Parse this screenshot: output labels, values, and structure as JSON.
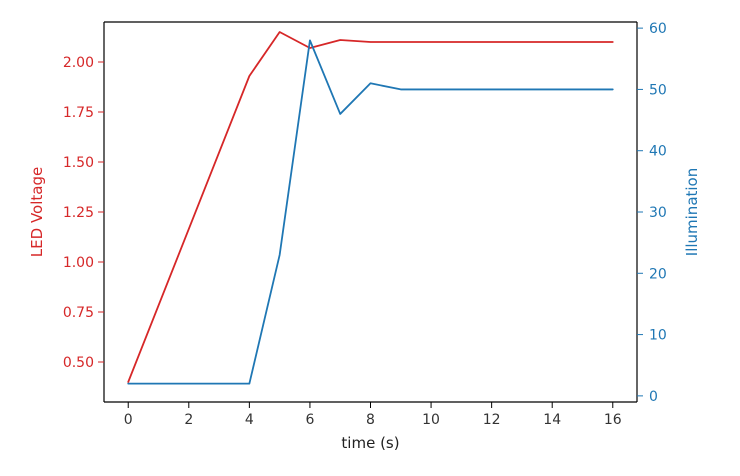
{
  "chart_data": {
    "type": "line",
    "xlabel": "time (s)",
    "ylabel_left": "LED Voltage",
    "ylabel_right": "Illumination",
    "x_ticks": [
      0,
      2,
      4,
      6,
      8,
      10,
      12,
      14,
      16
    ],
    "y_left_ticks": [
      "0.50",
      "0.75",
      "1.00",
      "1.25",
      "1.50",
      "1.75",
      "2.00"
    ],
    "y_right_ticks": [
      0,
      10,
      20,
      30,
      40,
      50,
      60
    ],
    "xlim": [
      -0.8,
      16.8
    ],
    "ylim_left": [
      0.3,
      2.2
    ],
    "ylim_right": [
      -1,
      61
    ],
    "grid": false,
    "colors": {
      "left": "#d62728",
      "right": "#1f77b4"
    },
    "series": [
      {
        "axis": "left",
        "x": [
          0,
          4,
          5,
          6,
          7,
          8,
          16
        ],
        "values": [
          0.4,
          1.93,
          2.15,
          2.07,
          2.11,
          2.1,
          2.1
        ]
      },
      {
        "axis": "right",
        "x": [
          0,
          4,
          5,
          6,
          7,
          8,
          9,
          16
        ],
        "values": [
          2,
          2,
          23,
          58,
          46,
          51,
          50,
          50
        ]
      }
    ]
  }
}
